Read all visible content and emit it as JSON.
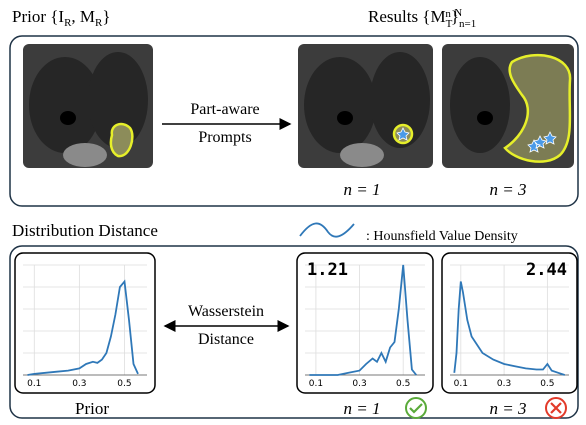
{
  "header": {
    "prior": [
      "Prior {I",
      "R",
      ", M",
      "R",
      "}"
    ],
    "results": [
      "Results {M",
      "T",
      "n",
      "}",
      "n=1",
      "N"
    ]
  },
  "prompt_label": [
    "Part-aware",
    "Prompts"
  ],
  "top_captions": [
    "n = 1",
    "n = 3"
  ],
  "section_title": "Distribution Distance",
  "legend_label": ": Hounsfield Value Density",
  "distance_label": [
    "Wasserstein",
    "Distance"
  ],
  "plots": [
    {
      "caption": "Prior",
      "xlim": [
        0.05,
        0.6
      ],
      "ylim": [
        0,
        1
      ],
      "xticks": [
        0.1,
        0.3,
        0.5
      ],
      "x": [
        0.07,
        0.1,
        0.15,
        0.2,
        0.25,
        0.3,
        0.33,
        0.36,
        0.38,
        0.4,
        0.42,
        0.44,
        0.46,
        0.48,
        0.5,
        0.52,
        0.54,
        0.56
      ],
      "y": [
        0,
        0.01,
        0.02,
        0.03,
        0.04,
        0.06,
        0.1,
        0.12,
        0.11,
        0.14,
        0.2,
        0.35,
        0.55,
        0.8,
        0.85,
        0.5,
        0.1,
        0.01
      ]
    },
    {
      "caption": "n = 1",
      "score": 1.21,
      "xlim": [
        0.05,
        0.6
      ],
      "ylim": [
        0,
        1
      ],
      "xticks": [
        0.1,
        0.3,
        0.5
      ],
      "x": [
        0.07,
        0.1,
        0.15,
        0.2,
        0.25,
        0.3,
        0.33,
        0.36,
        0.38,
        0.4,
        0.42,
        0.44,
        0.46,
        0.48,
        0.5,
        0.52,
        0.54,
        0.56
      ],
      "y": [
        0,
        0,
        0,
        0,
        0.02,
        0.04,
        0.1,
        0.15,
        0.12,
        0.2,
        0.12,
        0.25,
        0.3,
        0.6,
        1.0,
        0.5,
        0.05,
        0
      ]
    },
    {
      "caption": "n = 3",
      "score": 2.44,
      "xlim": [
        0.05,
        0.6
      ],
      "ylim": [
        0,
        1
      ],
      "xticks": [
        0.1,
        0.3,
        0.5
      ],
      "x": [
        0.07,
        0.08,
        0.09,
        0.1,
        0.11,
        0.13,
        0.15,
        0.2,
        0.25,
        0.3,
        0.35,
        0.4,
        0.45,
        0.48,
        0.5,
        0.52,
        0.55,
        0.58
      ],
      "y": [
        0.02,
        0.2,
        0.6,
        0.85,
        0.75,
        0.5,
        0.35,
        0.2,
        0.14,
        0.1,
        0.08,
        0.06,
        0.05,
        0.05,
        0.1,
        0.04,
        0.02,
        0
      ]
    }
  ]
}
